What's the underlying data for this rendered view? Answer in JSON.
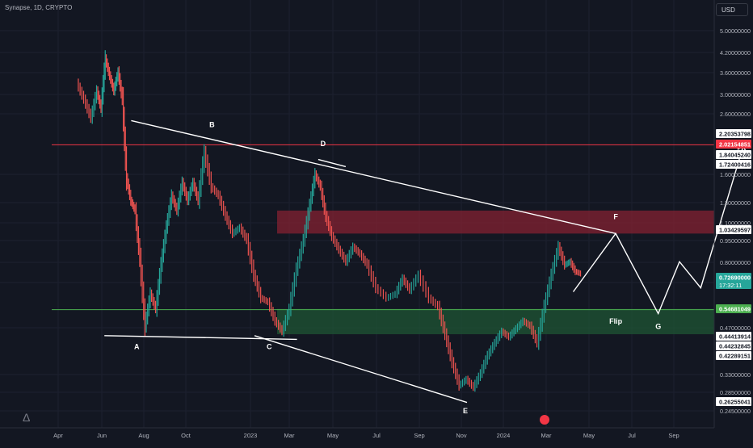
{
  "header": {
    "symbol": "Synapse, 1D, CRYPTO",
    "currency": "USD"
  },
  "colors": {
    "background": "#131722",
    "grid": "#1c2030",
    "up": "#26a69a",
    "down": "#ef5350",
    "resistance_zone": "#8b2232",
    "support_zone": "#1f5a34",
    "drawing": "#ffffff",
    "red_line": "#f23645",
    "green_line": "#4caf50"
  },
  "chart_data": {
    "type": "line",
    "title": "",
    "y_scale": "log",
    "ylim": [
      0.2256,
      5.9
    ],
    "x_ticks": [
      "Apr",
      "Jun",
      "Aug",
      "Oct",
      "2023",
      "Mar",
      "May",
      "Jul",
      "Sep",
      "Nov",
      "2024",
      "Mar",
      "May",
      "Jul",
      "Sep"
    ],
    "y_ticks": [
      "5.00000000",
      "4.20000000",
      "3.60000000",
      "3.00000000",
      "2.60000000",
      "1.60000000",
      "1.30000000",
      "1.10000000",
      "0.95000000",
      "0.80000000",
      "0.65000000",
      "0.47000000",
      "0.33000000",
      "0.28500000",
      "0.24500000"
    ],
    "price_series": [
      {
        "x": "Mar 2022",
        "y": 3.3
      },
      {
        "x": "Mar 2022",
        "y": 2.9
      },
      {
        "x": "Mar 2022",
        "y": 2.5
      },
      {
        "x": "Apr 2022",
        "y": 3.1
      },
      {
        "x": "Apr 2022",
        "y": 2.7
      },
      {
        "x": "Apr 2022",
        "y": 4.0
      },
      {
        "x": "Apr 2022",
        "y": 3.5
      },
      {
        "x": "Apr 2022",
        "y": 3.1
      },
      {
        "x": "May 2022",
        "y": 3.6
      },
      {
        "x": "May 2022",
        "y": 2.9
      },
      {
        "x": "May 2022",
        "y": 1.55
      },
      {
        "x": "May 2022",
        "y": 1.3
      },
      {
        "x": "May 2022",
        "y": 1.2
      },
      {
        "x": "Jun 2022",
        "y": 0.82
      },
      {
        "x": "Jun 2022",
        "y": 0.48
      },
      {
        "x": "Jun 2022",
        "y": 0.62
      },
      {
        "x": "Jun 2022",
        "y": 0.55
      },
      {
        "x": "Jul 2022",
        "y": 0.78
      },
      {
        "x": "Jul 2022",
        "y": 1.05
      },
      {
        "x": "Jul 2022",
        "y": 1.35
      },
      {
        "x": "Jul 2022",
        "y": 1.2
      },
      {
        "x": "Aug 2022",
        "y": 1.5
      },
      {
        "x": "Aug 2022",
        "y": 1.3
      },
      {
        "x": "Aug 2022",
        "y": 1.5
      },
      {
        "x": "Aug 2022",
        "y": 1.3
      },
      {
        "x": "Sep 2022",
        "y": 1.9
      },
      {
        "x": "Sep 2022",
        "y": 1.45
      },
      {
        "x": "Sep 2022",
        "y": 1.35
      },
      {
        "x": "Oct 2022",
        "y": 1.15
      },
      {
        "x": "Oct 2022",
        "y": 1.0
      },
      {
        "x": "Oct 2022",
        "y": 1.05
      },
      {
        "x": "Nov 2022",
        "y": 0.95
      },
      {
        "x": "Nov 2022",
        "y": 0.72
      },
      {
        "x": "Nov 2022",
        "y": 0.6
      },
      {
        "x": "Dec 2022",
        "y": 0.58
      },
      {
        "x": "Dec 2022",
        "y": 0.5
      },
      {
        "x": "Dec 2022",
        "y": 0.46
      },
      {
        "x": "Jan 2023",
        "y": 0.55
      },
      {
        "x": "Jan 2023",
        "y": 0.75
      },
      {
        "x": "Jan 2023",
        "y": 0.95
      },
      {
        "x": "Feb 2023",
        "y": 1.25
      },
      {
        "x": "Feb 2023",
        "y": 1.6
      },
      {
        "x": "Feb 2023",
        "y": 1.45
      },
      {
        "x": "Feb 2023",
        "y": 1.15
      },
      {
        "x": "Mar 2023",
        "y": 0.98
      },
      {
        "x": "Mar 2023",
        "y": 0.88
      },
      {
        "x": "Mar 2023",
        "y": 0.8
      },
      {
        "x": "Apr 2023",
        "y": 0.9
      },
      {
        "x": "Apr 2023",
        "y": 0.85
      },
      {
        "x": "Apr 2023",
        "y": 0.78
      },
      {
        "x": "May 2023",
        "y": 0.65
      },
      {
        "x": "May 2023",
        "y": 0.6
      },
      {
        "x": "Jun 2023",
        "y": 0.62
      },
      {
        "x": "Jun 2023",
        "y": 0.7
      },
      {
        "x": "Jun 2023",
        "y": 0.64
      },
      {
        "x": "Jul 2023",
        "y": 0.72
      },
      {
        "x": "Jul 2023",
        "y": 0.6
      },
      {
        "x": "Aug 2023",
        "y": 0.56
      },
      {
        "x": "Aug 2023",
        "y": 0.45
      },
      {
        "x": "Aug 2023",
        "y": 0.36
      },
      {
        "x": "Sep 2023",
        "y": 0.3
      },
      {
        "x": "Sep 2023",
        "y": 0.315
      },
      {
        "x": "Sep 2023",
        "y": 0.295
      },
      {
        "x": "Oct 2023",
        "y": 0.33
      },
      {
        "x": "Oct 2023",
        "y": 0.38
      },
      {
        "x": "Oct 2023",
        "y": 0.42
      },
      {
        "x": "Nov 2023",
        "y": 0.46
      },
      {
        "x": "Nov 2023",
        "y": 0.44
      },
      {
        "x": "Nov 2023",
        "y": 0.47
      },
      {
        "x": "Dec 2023",
        "y": 0.5
      },
      {
        "x": "Dec 2023",
        "y": 0.48
      },
      {
        "x": "Dec 2023",
        "y": 0.42
      },
      {
        "x": "Jan 2024",
        "y": 0.56
      },
      {
        "x": "Jan 2024",
        "y": 0.72
      },
      {
        "x": "Jan 2024",
        "y": 0.9
      },
      {
        "x": "Feb 2024",
        "y": 0.78
      },
      {
        "x": "Feb 2024",
        "y": 0.8
      },
      {
        "x": "Feb 2024",
        "y": 0.74
      },
      {
        "x": "Feb 2024",
        "y": 0.7269
      }
    ],
    "horizontal_lines": [
      {
        "name": "red-resistance-line",
        "y": 2.02154851,
        "color": "#f23645"
      },
      {
        "name": "green-support-line",
        "y": 0.54681049,
        "color": "#4caf50"
      }
    ],
    "zones": [
      {
        "name": "resistance-zone",
        "from": 1.0,
        "to": 1.2,
        "color": "#8b2232"
      },
      {
        "name": "support-zone",
        "from": 0.45,
        "to": 0.55,
        "color": "#1f5a34"
      }
    ],
    "wave_labels": [
      "A",
      "B",
      "C",
      "D",
      "E",
      "F",
      "G"
    ],
    "flip_label": "Flip",
    "price_labels": [
      {
        "text": "2.20353798",
        "style": "white"
      },
      {
        "text": "2.02154851",
        "style": "red"
      },
      {
        "text": "1.84045240",
        "style": "white"
      },
      {
        "text": "1.72400416",
        "style": "white"
      },
      {
        "text": "1.03429597",
        "style": "white"
      },
      {
        "text": "0.72690000",
        "style": "teal",
        "subtext": "17:32:11"
      },
      {
        "text": "0.54681049",
        "style": "green"
      },
      {
        "text": "0.44413914",
        "style": "white"
      },
      {
        "text": "0.44232845",
        "style": "white"
      },
      {
        "text": "0.42289151",
        "style": "white"
      },
      {
        "text": "0.26255041",
        "style": "white"
      }
    ]
  }
}
